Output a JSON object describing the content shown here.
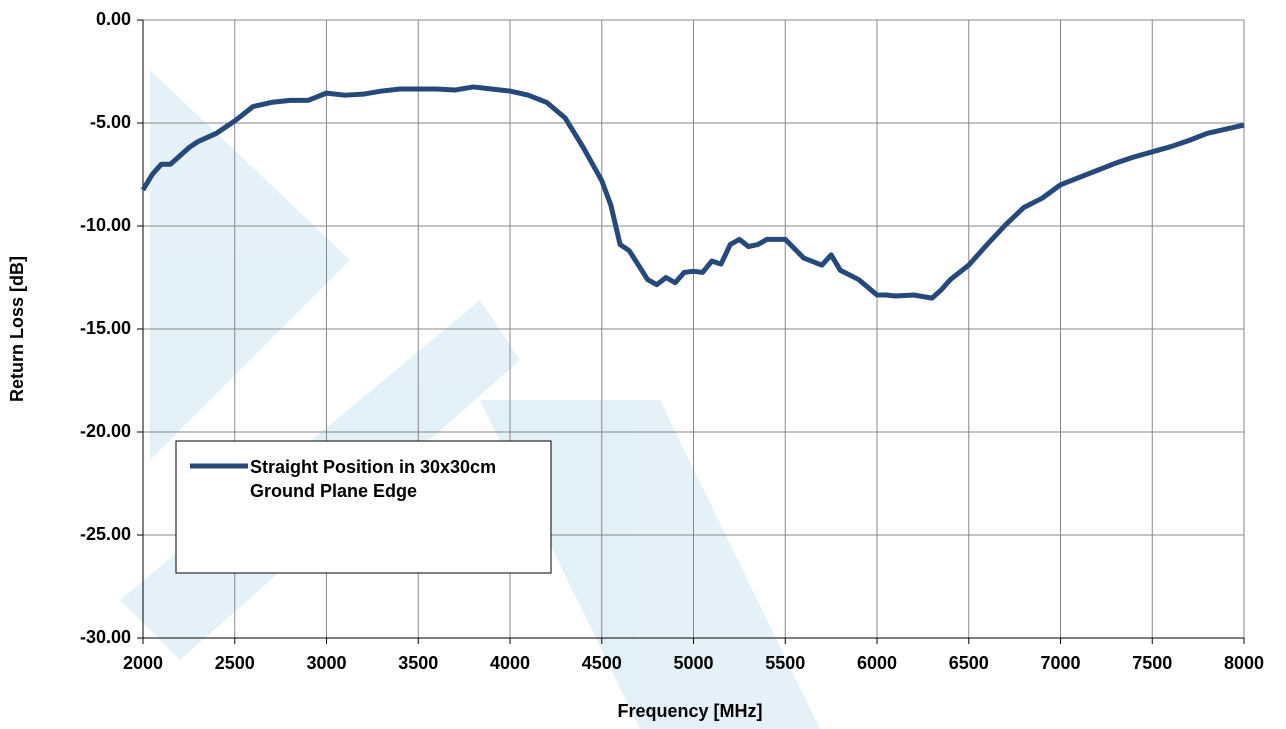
{
  "chart_data": {
    "type": "line",
    "x_label": "Frequency [MHz]",
    "y_label": "Return Loss [dB]",
    "xlim": [
      2000,
      8000
    ],
    "xticks": [
      2000,
      2500,
      3000,
      3500,
      4000,
      4500,
      5000,
      5500,
      6000,
      6500,
      7000,
      7500,
      8000
    ],
    "ylim": [
      -30,
      0
    ],
    "yticks": [
      {
        "value": 0,
        "label": "0.00"
      },
      {
        "value": -5,
        "label": "-5.00"
      },
      {
        "value": -10,
        "label": "-10.00"
      },
      {
        "value": -15,
        "label": "-15.00"
      },
      {
        "value": -20,
        "label": "-20.00"
      },
      {
        "value": -25,
        "label": "-25.00"
      },
      {
        "value": -30,
        "label": "-30.00"
      }
    ],
    "grid": true,
    "x": [
      2000,
      2050,
      2100,
      2150,
      2200,
      2250,
      2300,
      2350,
      2400,
      2450,
      2500,
      2600,
      2700,
      2800,
      2900,
      3000,
      3100,
      3200,
      3300,
      3400,
      3500,
      3600,
      3700,
      3800,
      3900,
      4000,
      4100,
      4200,
      4300,
      4400,
      4500,
      4550,
      4600,
      4650,
      4700,
      4750,
      4800,
      4850,
      4900,
      4950,
      5000,
      5050,
      5100,
      5150,
      5200,
      5250,
      5300,
      5350,
      5400,
      5500,
      5600,
      5700,
      5750,
      5800,
      5900,
      6000,
      6050,
      6100,
      6200,
      6300,
      6350,
      6400,
      6500,
      6600,
      6700,
      6800,
      6900,
      7000,
      7100,
      7200,
      7300,
      7400,
      7500,
      7600,
      7700,
      7800,
      7900,
      8000
    ],
    "series": [
      {
        "name": "Straight Position in 30x30cm Ground Plane Edge",
        "color": "#24497a",
        "values": [
          -8.25,
          -7.5,
          -7.0,
          -7.0,
          -6.6,
          -6.2,
          -5.9,
          -5.7,
          -5.5,
          -5.2,
          -4.9,
          -4.2,
          -4.0,
          -3.9,
          -3.9,
          -3.55,
          -3.65,
          -3.6,
          -3.45,
          -3.35,
          -3.35,
          -3.35,
          -3.4,
          -3.25,
          -3.35,
          -3.45,
          -3.65,
          -4.0,
          -4.75,
          -6.2,
          -7.8,
          -9.0,
          -10.9,
          -11.2,
          -11.9,
          -12.6,
          -12.85,
          -12.5,
          -12.75,
          -12.25,
          -12.2,
          -12.25,
          -11.7,
          -11.85,
          -10.9,
          -10.65,
          -11.0,
          -10.9,
          -10.65,
          -10.65,
          -11.55,
          -11.9,
          -11.4,
          -12.15,
          -12.6,
          -13.35,
          -13.35,
          -13.4,
          -13.35,
          -13.5,
          -13.1,
          -12.6,
          -11.9,
          -10.9,
          -9.95,
          -9.1,
          -8.65,
          -8.0,
          -7.65,
          -7.3,
          -6.95,
          -6.65,
          -6.4,
          -6.15,
          -5.85,
          -5.5,
          -5.3,
          -5.1
        ]
      }
    ],
    "legend": "lower-left"
  }
}
